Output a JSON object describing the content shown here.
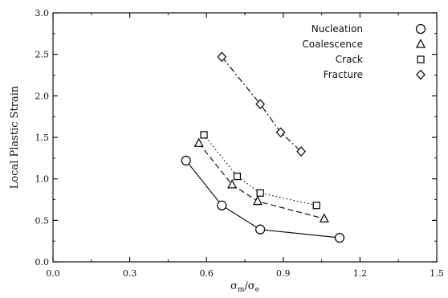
{
  "chart_data": {
    "type": "line",
    "xlabel_main": "σ",
    "xlabel_sub_num": "m",
    "xlabel_slash": "/",
    "xlabel_den": "σ",
    "xlabel_sub_den": "e",
    "ylabel": "Local Plastic Strain",
    "xlim": [
      0.0,
      1.5
    ],
    "ylim": [
      0.0,
      3.0
    ],
    "xticks": [
      "0.0",
      "0.3",
      "0.6",
      "0.9",
      "1.2",
      "1.5"
    ],
    "xtick_values": [
      0.0,
      0.3,
      0.6,
      0.9,
      1.2,
      1.5
    ],
    "yticks": [
      "0.0",
      "0.5",
      "1.0",
      "1.5",
      "2.0",
      "2.5",
      "3.0"
    ],
    "ytick_values": [
      0.0,
      0.5,
      1.0,
      1.5,
      2.0,
      2.5,
      3.0
    ],
    "grid": false,
    "legend_position": "top-right",
    "series": [
      {
        "name": "Nucleation",
        "marker": "circle",
        "line": "solid",
        "x": [
          0.52,
          0.66,
          0.81,
          1.12
        ],
        "y": [
          1.22,
          0.68,
          0.39,
          0.29
        ]
      },
      {
        "name": "Coalescence",
        "marker": "triangle",
        "line": "dashed",
        "x": [
          0.57,
          0.7,
          0.8,
          1.06
        ],
        "y": [
          1.43,
          0.93,
          0.73,
          0.52
        ]
      },
      {
        "name": "Crack",
        "marker": "square",
        "line": "dotted",
        "x": [
          0.59,
          0.72,
          0.81,
          1.03
        ],
        "y": [
          1.53,
          1.03,
          0.83,
          0.68
        ]
      },
      {
        "name": "Fracture",
        "marker": "diamond",
        "line": "dashdot",
        "x": [
          0.66,
          0.81,
          0.89,
          0.97
        ],
        "y": [
          2.47,
          1.9,
          1.56,
          1.33
        ]
      }
    ]
  }
}
